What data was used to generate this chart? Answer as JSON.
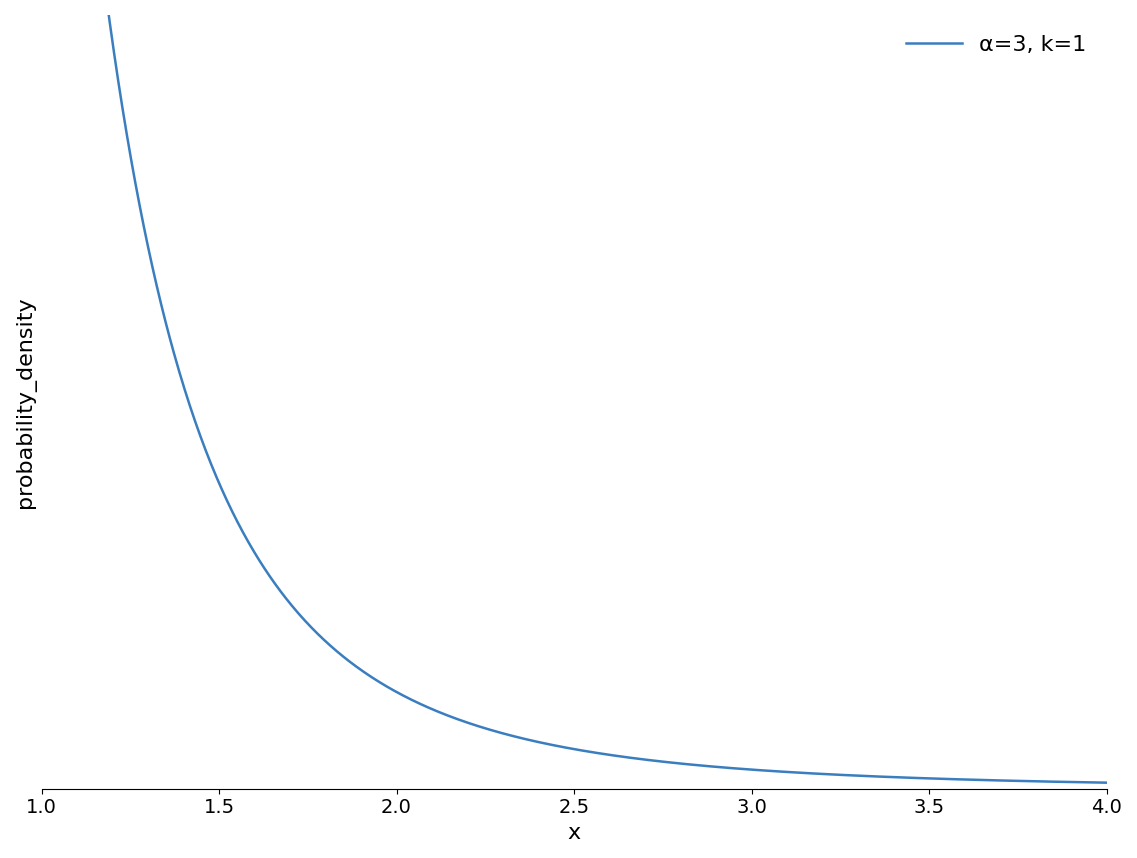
{
  "alpha": 3,
  "k": 1,
  "x_min": 1.0,
  "x_max": 4.0,
  "n_points": 1000,
  "line_color": "#3a7ebf",
  "line_width": 1.8,
  "xlabel": "x",
  "ylabel": "probability_density",
  "legend_label": "α=3, k=1",
  "background_color": "#ffffff",
  "figsize": [
    11.37,
    8.58
  ],
  "dpi": 100,
  "xticks": [
    1.0,
    1.5,
    2.0,
    2.5,
    3.0,
    3.5,
    4.0
  ],
  "xlim": [
    1.0,
    4.0
  ],
  "ylim": [
    0.0,
    1.5
  ],
  "legend_fontsize": 16,
  "axis_label_fontsize": 16,
  "tick_fontsize": 14
}
